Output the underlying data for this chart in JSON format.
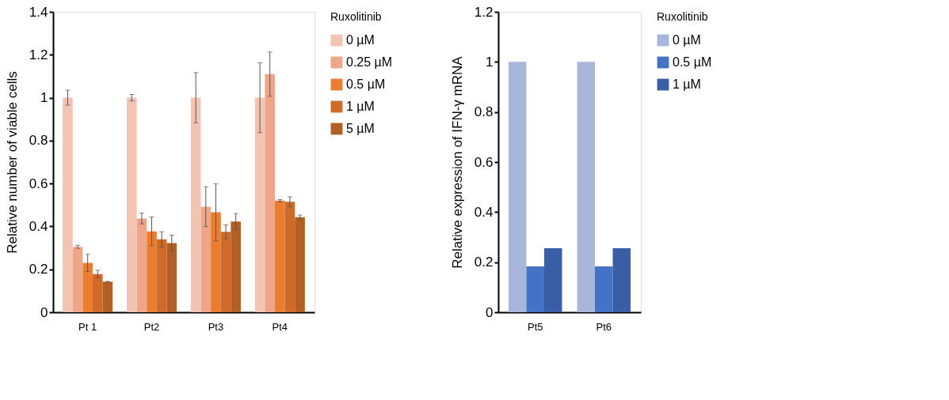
{
  "chart_data": [
    {
      "type": "bar",
      "categories": [
        "Pt 1",
        "Pt2",
        "Pt3",
        "Pt4"
      ],
      "ylabel": "Relative number of viable cells",
      "legend_title": "Ruxolitinib",
      "legend": "right",
      "grid": false,
      "ylim": [
        0,
        1.4
      ],
      "yticks": [
        0,
        0.2,
        0.4,
        0.6,
        0.8,
        1,
        1.2,
        1.4
      ],
      "series": [
        {
          "name": "0 µM",
          "color": "#f4c4b2",
          "values": [
            1.0,
            1.0,
            1.0,
            1.0
          ],
          "errors": [
            0.035,
            0.015,
            0.117,
            0.163
          ]
        },
        {
          "name": "0.25 µM",
          "color": "#eea688",
          "values": [
            0.305,
            0.437,
            0.492,
            1.11
          ],
          "errors": [
            0.007,
            0.025,
            0.093,
            0.103
          ]
        },
        {
          "name": "0.5 µM",
          "color": "#ea7d32",
          "values": [
            0.23,
            0.377,
            0.466,
            0.52
          ],
          "errors": [
            0.04,
            0.067,
            0.133,
            0.005
          ]
        },
        {
          "name": "1 µM",
          "color": "#cf6a28",
          "values": [
            0.178,
            0.34,
            0.375,
            0.515
          ],
          "errors": [
            0.018,
            0.035,
            0.032,
            0.023
          ]
        },
        {
          "name": "5 µM",
          "color": "#b35f24",
          "values": [
            0.142,
            0.322,
            0.423,
            0.443
          ],
          "errors": [
            0.002,
            0.037,
            0.037,
            0.01
          ]
        }
      ]
    },
    {
      "type": "bar",
      "categories": [
        "Pt5",
        "Pt6"
      ],
      "ylabel": "Relative expression of IFN-γ mRNA",
      "legend_title": "Ruxolitinib",
      "legend": "right",
      "grid": false,
      "ylim": [
        0,
        1.2
      ],
      "yticks": [
        0,
        0.2,
        0.4,
        0.6,
        0.8,
        1,
        1.2
      ],
      "series": [
        {
          "name": "0 µM",
          "color": "#a9b6dc",
          "values": [
            1.0,
            1.0
          ]
        },
        {
          "name": "0.5 µM",
          "color": "#4472c4",
          "values": [
            0.183,
            0.183
          ]
        },
        {
          "name": "1 µM",
          "color": "#3a5ea6",
          "values": [
            0.256,
            0.256
          ]
        }
      ]
    }
  ]
}
